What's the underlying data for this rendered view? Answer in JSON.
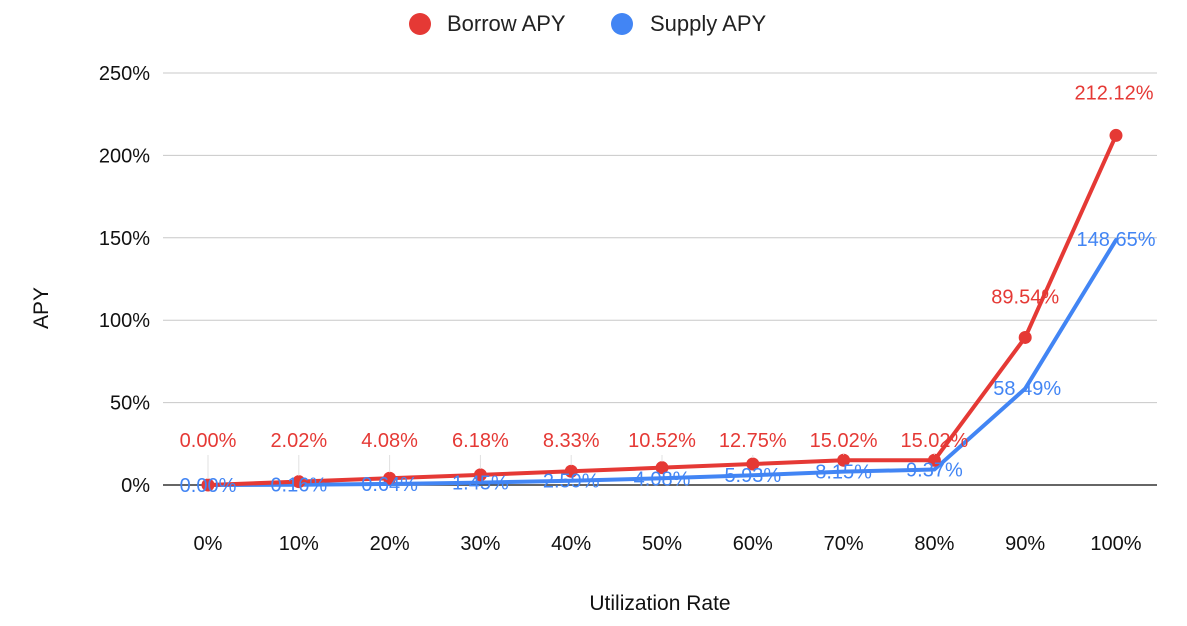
{
  "chart_data": {
    "type": "line",
    "xlabel": "Utilization Rate",
    "ylabel": "APY",
    "x": [
      "0%",
      "10%",
      "20%",
      "30%",
      "40%",
      "50%",
      "60%",
      "70%",
      "80%",
      "90%",
      "100%"
    ],
    "y_ticks": [
      "0%",
      "50%",
      "100%",
      "150%",
      "200%",
      "250%"
    ],
    "ylim": [
      0,
      250
    ],
    "grid": true,
    "legend_position": "top",
    "series": [
      {
        "name": "Borrow APY",
        "color": "#e53935",
        "values": [
          0.0,
          2.02,
          4.08,
          6.18,
          8.33,
          10.52,
          12.75,
          15.02,
          15.02,
          89.54,
          212.12
        ],
        "labels": [
          "0.00%",
          "2.02%",
          "4.08%",
          "6.18%",
          "8.33%",
          "10.52%",
          "12.75%",
          "15.02%",
          "15.02%",
          "89.54%",
          "212.12%"
        ],
        "markers": true
      },
      {
        "name": "Supply APY",
        "color": "#4285f4",
        "values": [
          0.0,
          0.16,
          0.64,
          1.45,
          2.59,
          4.08,
          5.93,
          8.15,
          9.37,
          58.49,
          148.65
        ],
        "labels": [
          "0.00%",
          "0.16%",
          "0.64%",
          "1.45%",
          "2.59%",
          "4.08%",
          "5.93%",
          "8.15%",
          "9.37%",
          "58.49%",
          "148.65%"
        ],
        "markers": false
      }
    ]
  }
}
